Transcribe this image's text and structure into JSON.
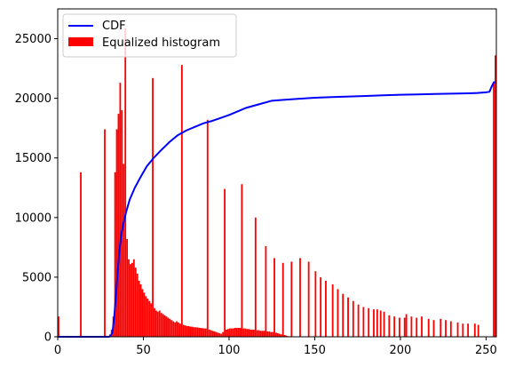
{
  "chart_data": {
    "type": "bar",
    "title": "",
    "xlabel": "",
    "ylabel": "",
    "xlim": [
      0,
      256
    ],
    "ylim": [
      0,
      27500
    ],
    "grid": false,
    "legend_position": "upper-left",
    "x_ticks": [
      0,
      50,
      100,
      150,
      200,
      250
    ],
    "y_ticks": [
      0,
      5000,
      10000,
      15000,
      20000,
      25000
    ],
    "series": [
      {
        "name": "CDF",
        "type": "line",
        "color": "#0000ff",
        "x": [
          0,
          30,
          31,
          32,
          33,
          34,
          35,
          36,
          37,
          38,
          40,
          42,
          45,
          48,
          52,
          56,
          60,
          65,
          70,
          75,
          80,
          85,
          90,
          95,
          100,
          110,
          120,
          125,
          130,
          140,
          150,
          160,
          170,
          180,
          190,
          200,
          210,
          220,
          230,
          240,
          245,
          250,
          252,
          253,
          254,
          255
        ],
        "y": [
          0,
          0,
          100,
          400,
          1700,
          3500,
          5500,
          7200,
          8500,
          9300,
          10500,
          11500,
          12500,
          13300,
          14300,
          15000,
          15600,
          16300,
          16900,
          17300,
          17600,
          17900,
          18100,
          18350,
          18600,
          19200,
          19600,
          19800,
          19850,
          19950,
          20050,
          20100,
          20150,
          20200,
          20250,
          20300,
          20330,
          20360,
          20390,
          20420,
          20450,
          20500,
          20550,
          20900,
          21200,
          21400
        ]
      },
      {
        "name": "Equalized histogram",
        "type": "bar",
        "color": "#ff0000",
        "bins": [
          [
            0,
            1700
          ],
          [
            13,
            13800
          ],
          [
            27,
            17400
          ],
          [
            30,
            200
          ],
          [
            31,
            600
          ],
          [
            32,
            1700
          ],
          [
            33,
            13800
          ],
          [
            34,
            17400
          ],
          [
            35,
            18700
          ],
          [
            36,
            21300
          ],
          [
            37,
            19000
          ],
          [
            38,
            14500
          ],
          [
            39,
            25900
          ],
          [
            40,
            8200
          ],
          [
            41,
            6500
          ],
          [
            42,
            6100
          ],
          [
            43,
            6200
          ],
          [
            44,
            6500
          ],
          [
            45,
            5800
          ],
          [
            46,
            5300
          ],
          [
            47,
            4700
          ],
          [
            48,
            4400
          ],
          [
            49,
            4000
          ],
          [
            50,
            3700
          ],
          [
            51,
            3400
          ],
          [
            52,
            3200
          ],
          [
            53,
            3000
          ],
          [
            54,
            2800
          ],
          [
            55,
            21700
          ],
          [
            56,
            2400
          ],
          [
            57,
            2200
          ],
          [
            58,
            2100
          ],
          [
            59,
            2200
          ],
          [
            60,
            2000
          ],
          [
            61,
            1900
          ],
          [
            62,
            1800
          ],
          [
            63,
            1700
          ],
          [
            64,
            1600
          ],
          [
            65,
            1500
          ],
          [
            66,
            1400
          ],
          [
            67,
            1300
          ],
          [
            68,
            1200
          ],
          [
            69,
            1300
          ],
          [
            70,
            1200
          ],
          [
            71,
            1100
          ],
          [
            72,
            22800
          ],
          [
            73,
            1000
          ],
          [
            74,
            950
          ],
          [
            75,
            900
          ],
          [
            76,
            900
          ],
          [
            77,
            850
          ],
          [
            78,
            850
          ],
          [
            79,
            800
          ],
          [
            80,
            800
          ],
          [
            81,
            780
          ],
          [
            82,
            760
          ],
          [
            83,
            740
          ],
          [
            84,
            720
          ],
          [
            85,
            700
          ],
          [
            86,
            700
          ],
          [
            87,
            18200
          ],
          [
            88,
            600
          ],
          [
            89,
            550
          ],
          [
            90,
            500
          ],
          [
            91,
            450
          ],
          [
            92,
            400
          ],
          [
            93,
            350
          ],
          [
            94,
            300
          ],
          [
            95,
            250
          ],
          [
            96,
            400
          ],
          [
            97,
            12400
          ],
          [
            98,
            600
          ],
          [
            99,
            650
          ],
          [
            100,
            700
          ],
          [
            101,
            700
          ],
          [
            102,
            700
          ],
          [
            103,
            750
          ],
          [
            104,
            750
          ],
          [
            105,
            750
          ],
          [
            106,
            750
          ],
          [
            107,
            12800
          ],
          [
            108,
            700
          ],
          [
            109,
            700
          ],
          [
            110,
            650
          ],
          [
            111,
            650
          ],
          [
            112,
            600
          ],
          [
            113,
            600
          ],
          [
            114,
            600
          ],
          [
            115,
            10000
          ],
          [
            116,
            550
          ],
          [
            117,
            550
          ],
          [
            118,
            500
          ],
          [
            119,
            500
          ],
          [
            120,
            500
          ],
          [
            121,
            7600
          ],
          [
            122,
            450
          ],
          [
            123,
            450
          ],
          [
            124,
            400
          ],
          [
            125,
            400
          ],
          [
            126,
            6600
          ],
          [
            127,
            350
          ],
          [
            128,
            300
          ],
          [
            129,
            250
          ],
          [
            130,
            200
          ],
          [
            131,
            6200
          ],
          [
            132,
            150
          ],
          [
            133,
            100
          ],
          [
            134,
            50
          ],
          [
            136,
            6300
          ],
          [
            141,
            6600
          ],
          [
            146,
            6300
          ],
          [
            150,
            5500
          ],
          [
            153,
            5000
          ],
          [
            156,
            4700
          ],
          [
            160,
            4400
          ],
          [
            163,
            4000
          ],
          [
            166,
            3600
          ],
          [
            169,
            3300
          ],
          [
            172,
            3000
          ],
          [
            175,
            2700
          ],
          [
            178,
            2500
          ],
          [
            181,
            2400
          ],
          [
            184,
            2300
          ],
          [
            186,
            2300
          ],
          [
            188,
            2200
          ],
          [
            190,
            2100
          ],
          [
            193,
            1800
          ],
          [
            196,
            1700
          ],
          [
            199,
            1600
          ],
          [
            202,
            1600
          ],
          [
            203,
            1900
          ],
          [
            206,
            1700
          ],
          [
            209,
            1600
          ],
          [
            212,
            1700
          ],
          [
            216,
            1500
          ],
          [
            219,
            1400
          ],
          [
            223,
            1500
          ],
          [
            226,
            1400
          ],
          [
            229,
            1300
          ],
          [
            233,
            1200
          ],
          [
            236,
            1100
          ],
          [
            239,
            1100
          ],
          [
            243,
            1100
          ],
          [
            245,
            1000
          ],
          [
            254,
            21400
          ],
          [
            255,
            23600
          ]
        ]
      }
    ]
  }
}
